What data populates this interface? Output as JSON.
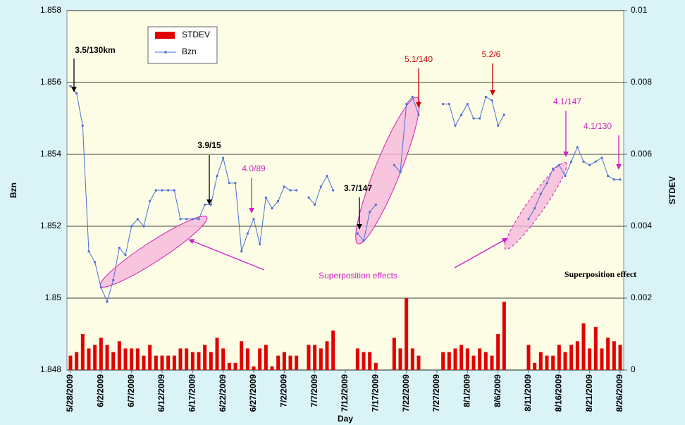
{
  "chart_data": {
    "type": "bar_line",
    "x_label": "Day",
    "y_label": "Bzn",
    "y2_label": "STDEV",
    "categories": [
      "5/28/2009",
      null,
      null,
      null,
      null,
      "6/2/2009",
      null,
      null,
      null,
      null,
      "6/7/2009",
      null,
      null,
      null,
      null,
      "6/12/2009",
      null,
      null,
      null,
      null,
      "6/17/2009",
      null,
      null,
      null,
      null,
      "6/22/2009",
      null,
      null,
      null,
      null,
      "6/27/2009",
      null,
      null,
      null,
      null,
      "7/2/2009",
      null,
      null,
      null,
      null,
      "7/7/2009",
      null,
      null,
      null,
      null,
      "7/12/2009",
      null,
      null,
      null,
      null,
      "7/17/2009",
      null,
      null,
      null,
      null,
      "7/22/2009",
      null,
      null,
      null,
      null,
      "7/27/2009",
      null,
      null,
      null,
      null,
      "8/1/2009",
      null,
      null,
      null,
      null,
      "8/6/2009",
      null,
      null,
      null,
      null,
      "8/11/2009",
      null,
      null,
      null,
      null,
      "8/16/2009",
      null,
      null,
      null,
      null,
      "8/21/2009",
      null,
      null,
      null,
      null,
      "8/26/2009"
    ],
    "series": [
      {
        "name": "STDEV",
        "type": "bar",
        "axis": "y2",
        "color": "#e00000",
        "values": [
          0.0004,
          0.0005,
          0.001,
          0.0006,
          0.0007,
          0.0009,
          0.0007,
          0.0005,
          0.0008,
          0.0006,
          0.0006,
          0.0006,
          0.0004,
          0.0007,
          0.0004,
          0.0004,
          0.0004,
          0.0004,
          0.0006,
          0.0006,
          0.0005,
          0.0005,
          0.0007,
          0.0005,
          0.0009,
          0.0006,
          0.0002,
          0.0002,
          0.0008,
          0.0006,
          0.0001,
          0.0006,
          0.0007,
          0.0001,
          0.0004,
          0.0005,
          0.0004,
          0.0004,
          null,
          0.0007,
          0.0007,
          0.0006,
          0.0008,
          0.0011,
          null,
          null,
          null,
          0.0006,
          0.0005,
          0.0005,
          0.0002,
          null,
          null,
          0.0009,
          0.0006,
          0.002,
          0.0006,
          0.0004,
          null,
          null,
          null,
          0.0005,
          0.0005,
          0.0006,
          0.0007,
          0.0006,
          0.0004,
          0.0006,
          0.0005,
          0.0004,
          0.001,
          0.0019,
          null,
          null,
          null,
          0.0007,
          0.0002,
          0.0005,
          0.0004,
          0.0004,
          0.0007,
          0.0005,
          0.0007,
          0.0008,
          0.0013,
          0.0006,
          0.0012,
          0.0006,
          0.0009,
          0.0008,
          0.0007
        ]
      },
      {
        "name": "Bzn",
        "type": "line",
        "axis": "y",
        "color": "#4a6fd8",
        "values": [
          1.8559,
          1.8557,
          1.8548,
          1.8513,
          1.851,
          1.8503,
          1.8499,
          1.8505,
          1.8514,
          1.8512,
          1.852,
          1.8522,
          1.852,
          1.8527,
          1.853,
          1.853,
          1.853,
          1.853,
          1.8522,
          1.8522,
          1.8522,
          1.8522,
          1.8526,
          1.8526,
          1.8534,
          1.8539,
          1.8532,
          1.8532,
          1.8513,
          1.8518,
          1.8522,
          1.8515,
          1.8528,
          1.8525,
          1.8527,
          1.8531,
          1.853,
          1.853,
          null,
          1.8528,
          1.8526,
          1.8531,
          1.8534,
          1.853,
          null,
          null,
          null,
          1.8518,
          1.8516,
          1.8524,
          1.8526,
          null,
          null,
          1.8537,
          1.8535,
          1.8554,
          1.8556,
          1.8551,
          null,
          null,
          null,
          1.8554,
          1.8554,
          1.8548,
          1.8551,
          1.8554,
          1.855,
          1.855,
          1.8556,
          1.8555,
          1.8548,
          1.8551,
          null,
          null,
          null,
          1.8522,
          1.8525,
          1.8529,
          1.8532,
          1.8536,
          1.8537,
          1.8534,
          1.8538,
          1.8542,
          1.8538,
          1.8537,
          1.8538,
          1.8539,
          1.8534,
          1.8533,
          1.8533
        ]
      }
    ],
    "ylim": [
      1.848,
      1.858
    ],
    "yticks": [
      1.848,
      1.85,
      1.852,
      1.854,
      1.856,
      1.858
    ],
    "y2lim": [
      0,
      0.01
    ],
    "y2ticks": [
      0,
      0.002,
      0.004,
      0.006,
      0.008,
      0.01
    ],
    "grid": true,
    "legend": "upper left",
    "annotations": [
      "3.5/130km",
      "3.9/15",
      "4.0/89",
      "3.7/147",
      "5.1/140",
      "5.2/6",
      "4.1/147",
      "4.1/130",
      "Superposition effects",
      "Superposition effect"
    ]
  }
}
